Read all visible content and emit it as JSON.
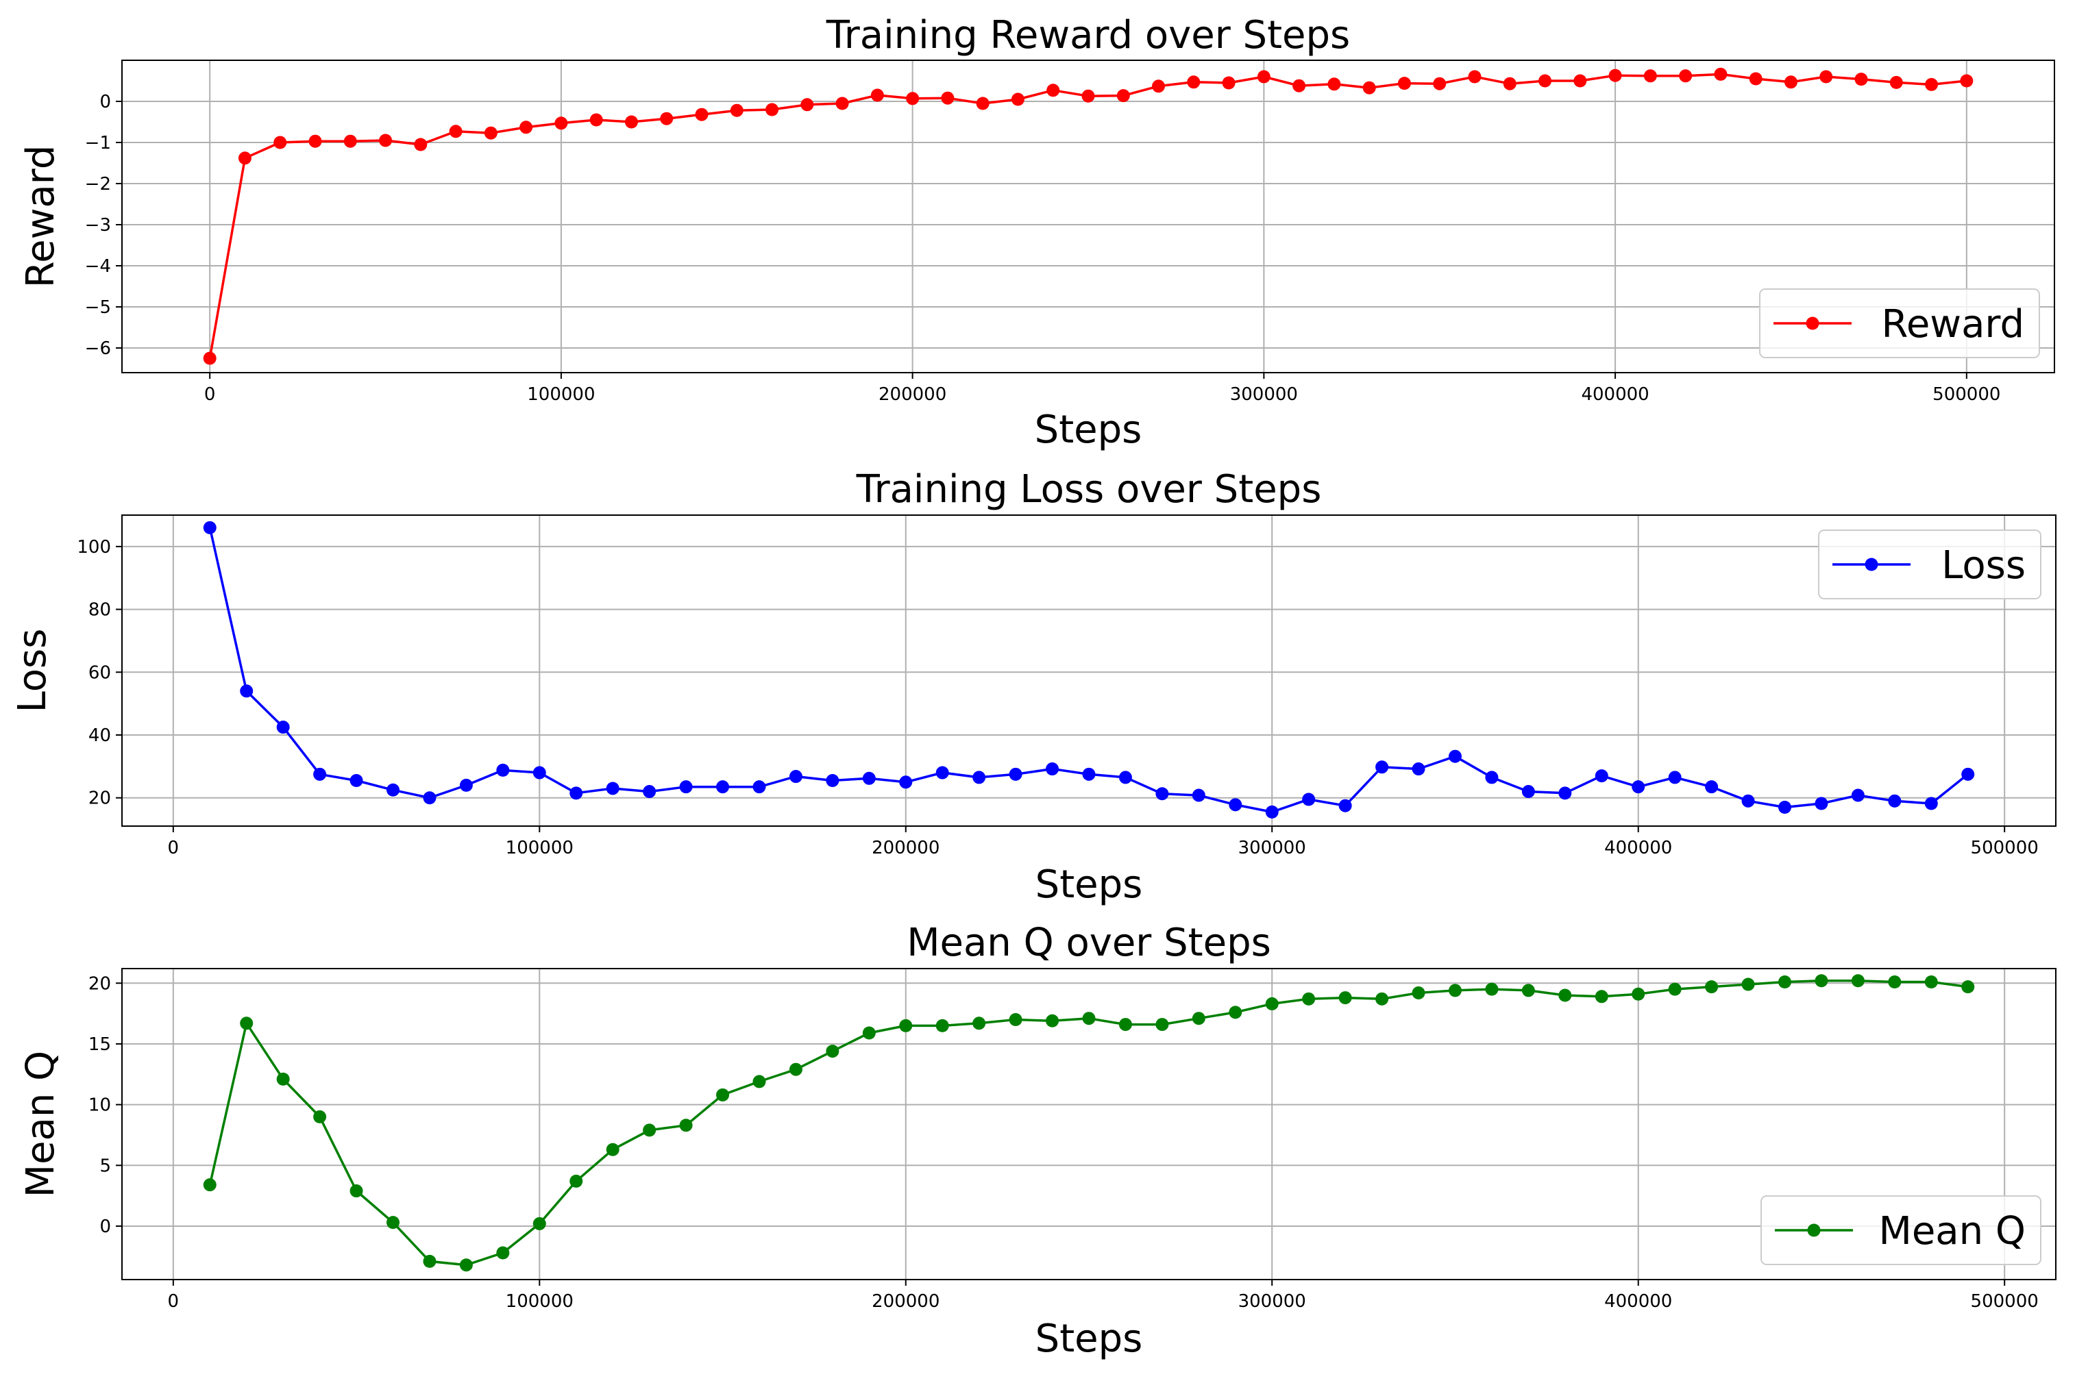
{
  "figure": {
    "background": "#ffffff"
  },
  "chart_data": [
    {
      "type": "line",
      "title": "Training Reward over Steps",
      "xlabel": "Steps",
      "ylabel": "Reward",
      "xlim": [
        -25000,
        525000
      ],
      "ylim": [
        -6.6,
        1.0
      ],
      "xticks": [
        0,
        100000,
        200000,
        300000,
        400000,
        500000
      ],
      "xtick_labels": [
        "0",
        "100000",
        "200000",
        "300000",
        "400000",
        "500000"
      ],
      "yticks": [
        -6,
        -5,
        -4,
        -3,
        -2,
        -1,
        0
      ],
      "ytick_labels": [
        "−6",
        "−5",
        "−4",
        "−3",
        "−2",
        "−1",
        "0"
      ],
      "grid": true,
      "legend_position": "lower-right",
      "series": [
        {
          "name": "Reward",
          "color": "#ff0000",
          "x": [
            0,
            10000,
            20000,
            30000,
            40000,
            50000,
            60000,
            70000,
            80000,
            90000,
            100000,
            110000,
            120000,
            130000,
            140000,
            150000,
            160000,
            170000,
            180000,
            190000,
            200000,
            210000,
            220000,
            230000,
            240000,
            250000,
            260000,
            270000,
            280000,
            290000,
            300000,
            310000,
            320000,
            330000,
            340000,
            350000,
            360000,
            370000,
            380000,
            390000,
            400000,
            410000,
            420000,
            430000,
            440000,
            450000,
            460000,
            470000,
            480000,
            490000,
            500000
          ],
          "y": [
            -6.25,
            -1.38,
            -1.0,
            -0.97,
            -0.97,
            -0.95,
            -1.05,
            -0.73,
            -0.77,
            -0.63,
            -0.53,
            -0.45,
            -0.5,
            -0.42,
            -0.32,
            -0.22,
            -0.2,
            -0.08,
            -0.05,
            0.15,
            0.07,
            0.08,
            -0.05,
            0.05,
            0.27,
            0.13,
            0.14,
            0.37,
            0.47,
            0.45,
            0.6,
            0.38,
            0.42,
            0.33,
            0.44,
            0.43,
            0.6,
            0.43,
            0.5,
            0.5,
            0.63,
            0.62,
            0.62,
            0.66,
            0.55,
            0.47,
            0.6,
            0.54,
            0.46,
            0.41,
            0.5
          ]
        }
      ]
    },
    {
      "type": "line",
      "title": "Training Loss over Steps",
      "xlabel": "Steps",
      "ylabel": "Loss",
      "xlim": [
        -14000,
        514000
      ],
      "ylim": [
        11,
        110
      ],
      "xticks": [
        0,
        100000,
        200000,
        300000,
        400000,
        500000
      ],
      "xtick_labels": [
        "0",
        "100000",
        "200000",
        "300000",
        "400000",
        "500000"
      ],
      "yticks": [
        20,
        40,
        60,
        80,
        100
      ],
      "ytick_labels": [
        "20",
        "40",
        "60",
        "80",
        "100"
      ],
      "grid": true,
      "legend_position": "upper-right",
      "series": [
        {
          "name": "Loss",
          "color": "#0000ff",
          "x": [
            10000,
            20000,
            30000,
            40000,
            50000,
            60000,
            70000,
            80000,
            90000,
            100000,
            110000,
            120000,
            130000,
            140000,
            150000,
            160000,
            170000,
            180000,
            190000,
            200000,
            210000,
            220000,
            230000,
            240000,
            250000,
            260000,
            270000,
            280000,
            290000,
            300000,
            310000,
            320000,
            330000,
            340000,
            350000,
            360000,
            370000,
            380000,
            390000,
            400000,
            410000,
            420000,
            430000,
            440000,
            450000,
            460000,
            470000,
            480000,
            490000
          ],
          "y": [
            106,
            54,
            42.5,
            27.5,
            25.5,
            22.5,
            20,
            24,
            28.8,
            28,
            21.5,
            23,
            22,
            23.5,
            23.5,
            23.5,
            26.8,
            25.5,
            26.2,
            25,
            28,
            26.5,
            27.5,
            29.2,
            27.5,
            26.5,
            21.3,
            20.8,
            17.8,
            15.5,
            19.5,
            17.5,
            29.8,
            29.2,
            33.2,
            26.5,
            22,
            21.5,
            27,
            23.5,
            26.5,
            23.5,
            19,
            17,
            18.2,
            20.8,
            19,
            18.2,
            27.5
          ]
        }
      ]
    },
    {
      "type": "line",
      "title": "Mean Q over Steps",
      "xlabel": "Steps",
      "ylabel": "Mean Q",
      "xlim": [
        -14000,
        514000
      ],
      "ylim": [
        -4.4,
        21.2
      ],
      "xticks": [
        0,
        100000,
        200000,
        300000,
        400000,
        500000
      ],
      "xtick_labels": [
        "0",
        "100000",
        "200000",
        "300000",
        "400000",
        "500000"
      ],
      "yticks": [
        0,
        5,
        10,
        15,
        20
      ],
      "ytick_labels": [
        "0",
        "5",
        "10",
        "15",
        "20"
      ],
      "grid": true,
      "legend_position": "lower-right",
      "series": [
        {
          "name": "Mean Q",
          "color": "#008000",
          "x": [
            10000,
            20000,
            30000,
            40000,
            50000,
            60000,
            70000,
            80000,
            90000,
            100000,
            110000,
            120000,
            130000,
            140000,
            150000,
            160000,
            170000,
            180000,
            190000,
            200000,
            210000,
            220000,
            230000,
            240000,
            250000,
            260000,
            270000,
            280000,
            290000,
            300000,
            310000,
            320000,
            330000,
            340000,
            350000,
            360000,
            370000,
            380000,
            390000,
            400000,
            410000,
            420000,
            430000,
            440000,
            450000,
            460000,
            470000,
            480000,
            490000
          ],
          "y": [
            3.4,
            16.7,
            12.1,
            9.0,
            2.9,
            0.3,
            -2.9,
            -3.2,
            -2.2,
            0.2,
            3.7,
            6.3,
            7.9,
            8.3,
            10.8,
            11.9,
            12.9,
            14.4,
            15.9,
            16.5,
            16.5,
            16.7,
            17.0,
            16.9,
            17.1,
            16.6,
            16.6,
            17.1,
            17.6,
            18.3,
            18.7,
            18.8,
            18.7,
            19.2,
            19.4,
            19.5,
            19.4,
            19.0,
            18.9,
            19.1,
            19.5,
            19.7,
            19.9,
            20.1,
            20.2,
            20.2,
            20.1,
            20.1,
            19.7
          ]
        }
      ]
    }
  ]
}
